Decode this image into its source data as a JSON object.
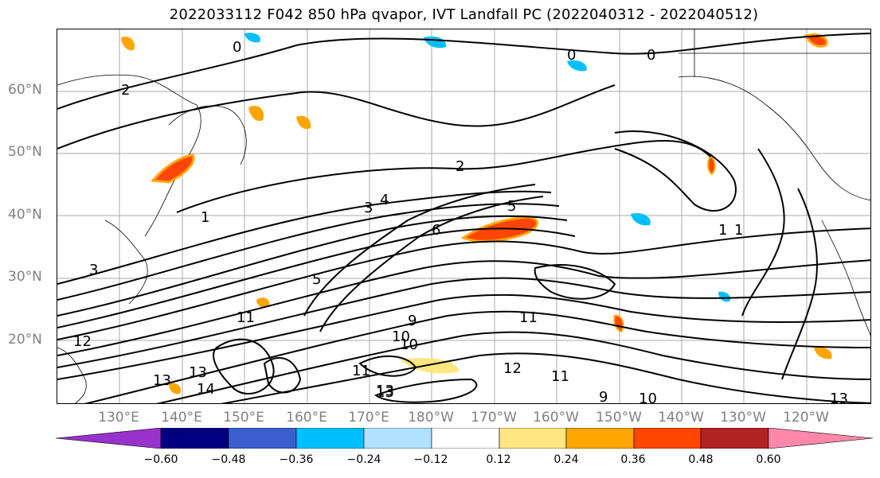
{
  "title": "2022033112 F042 850 hPa qvapor, IVT Landfall PC (2022040312 - 2022040512)",
  "lat_labels": [
    "60°N",
    "50°N",
    "40°N",
    "30°N",
    "20°N"
  ],
  "lon_labels": [
    "130°E",
    "140°E",
    "150°E",
    "160°E",
    "170°E",
    "180°W",
    "170°W",
    "160°W",
    "150°W",
    "140°W",
    "130°W",
    "120°W"
  ],
  "contour_labels": [
    "0",
    "0",
    "0",
    "2",
    "2",
    "3",
    "4",
    "5",
    "6",
    "1",
    "1",
    "3",
    "5",
    "9",
    "10",
    "11",
    "11",
    "12",
    "13",
    "13",
    "13",
    "14",
    "10",
    "11",
    "9",
    "10",
    "12",
    "13",
    "11",
    "13",
    "1"
  ],
  "colorbar": {
    "colors": [
      "#9932cc",
      "#000080",
      "#3a5fcd",
      "#00bfff",
      "#b0e2ff",
      "#ffffff",
      "#ffe680",
      "#ffa500",
      "#ff4500",
      "#b22222",
      "#ff88aa"
    ],
    "tick_labels": [
      "−0.60",
      "−0.48",
      "−0.36",
      "−0.24",
      "−0.12",
      "0.12",
      "0.24",
      "0.36",
      "0.48",
      "0.60"
    ]
  }
}
